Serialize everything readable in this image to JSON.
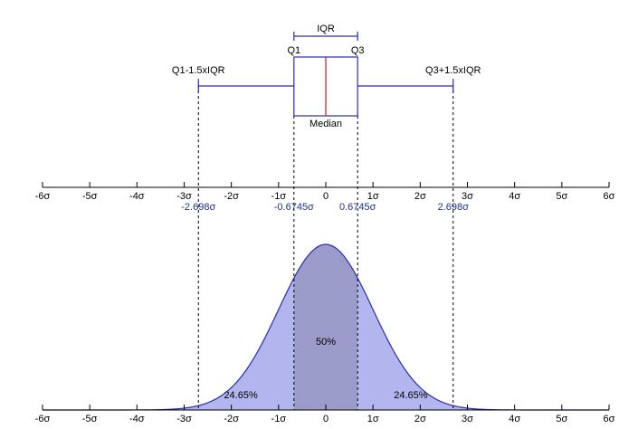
{
  "colors": {
    "box": "#2b2bb0",
    "median_line": "#d01818",
    "curve_line": "#2b2bb0",
    "tail_fill": "#b3b5ee",
    "middle_fill": "#9c9ccb",
    "axis": "#000000",
    "dashed": "#000000",
    "sigma_label": "#1f2f8f"
  },
  "box_plot": {
    "iqr_label": "IQR",
    "q1_label": "Q1",
    "q3_label": "Q3",
    "median_label": "Median",
    "lower_whisker_label": "Q1-1.5xIQR",
    "upper_whisker_label": "Q3+1.5xIQR",
    "q1": -0.6745,
    "median": 0,
    "q3": 0.6745,
    "lower_whisker": -2.698,
    "upper_whisker": 2.698
  },
  "axis": {
    "min": -6,
    "max": 6,
    "tick_labels": [
      "-6σ",
      "-5σ",
      "-4σ",
      "-3σ",
      "-2σ",
      "-1σ",
      "0",
      "1σ",
      "2σ",
      "3σ",
      "4σ",
      "5σ",
      "6σ"
    ]
  },
  "markers": [
    {
      "value": -2.698,
      "label": "-2.698σ"
    },
    {
      "value": -0.6745,
      "label": "-0.6745σ"
    },
    {
      "value": 0.6745,
      "label": "0.6745σ"
    },
    {
      "value": 2.698,
      "label": "2.698σ"
    }
  ],
  "distribution": {
    "middle_label": "50%",
    "left_label": "24.65%",
    "right_label": "24.65%"
  }
}
